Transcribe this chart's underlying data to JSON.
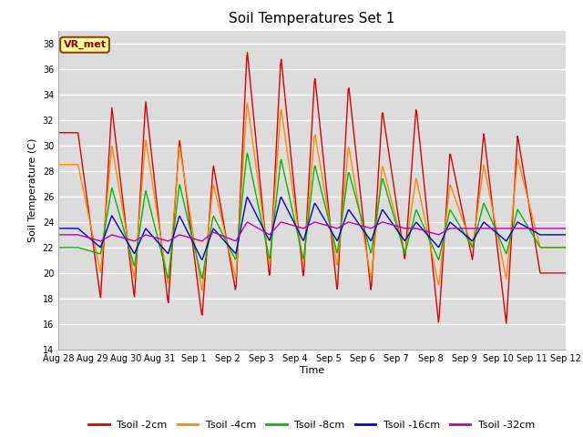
{
  "title": "Soil Temperatures Set 1",
  "xlabel": "Time",
  "ylabel": "Soil Temperature (C)",
  "ylim": [
    14,
    39
  ],
  "yticks": [
    14,
    16,
    18,
    20,
    22,
    24,
    26,
    28,
    30,
    32,
    34,
    36,
    38
  ],
  "annotation_text": "VR_met",
  "background_color": "#dcdcdc",
  "series_colors": [
    "#dd0000",
    "#ff8800",
    "#00bb00",
    "#0000cc",
    "#bb00bb"
  ],
  "series_labels": [
    "Tsoil -2cm",
    "Tsoil -4cm",
    "Tsoil -8cm",
    "Tsoil -16cm",
    "Tsoil -32cm"
  ],
  "x_tick_labels": [
    "Aug 28",
    "Aug 29",
    "Aug 30",
    "Aug 31",
    "Sep 1",
    "Sep 2",
    "Sep 3",
    "Sep 4",
    "Sep 5",
    "Sep 6",
    "Sep 7",
    "Sep 8",
    "Sep 9",
    "Sep 10",
    "Sep 11",
    "Sep 12"
  ],
  "num_days": 15,
  "pts_per_day": 48,
  "peaks_2cm": [
    31.0,
    18.0,
    33.0,
    18.0,
    33.5,
    17.5,
    30.5,
    16.5,
    28.5,
    18.5,
    37.5,
    19.5,
    37.0,
    19.5,
    35.5,
    18.5,
    34.8,
    18.5,
    32.8,
    21.0,
    33.0,
    16.0,
    29.5,
    21.0,
    31.0,
    16.0,
    30.8,
    20.0
  ],
  "peaks_4cm": [
    28.5,
    20.0,
    30.0,
    19.5,
    30.5,
    19.0,
    30.0,
    18.5,
    27.0,
    19.5,
    33.5,
    20.5,
    33.0,
    20.5,
    31.0,
    20.5,
    30.0,
    19.5,
    28.5,
    21.5,
    27.5,
    19.0,
    27.0,
    22.0,
    28.5,
    19.5,
    29.0,
    22.0
  ],
  "peaks_8cm": [
    22.0,
    21.5,
    26.7,
    20.5,
    26.5,
    19.5,
    27.0,
    19.5,
    24.5,
    21.0,
    29.5,
    21.0,
    29.0,
    21.0,
    28.5,
    21.5,
    28.0,
    21.5,
    27.5,
    21.5,
    25.0,
    21.0,
    25.0,
    22.0,
    25.5,
    21.5,
    25.0,
    22.0
  ],
  "peaks_16cm": [
    23.5,
    22.0,
    24.5,
    21.5,
    23.5,
    21.5,
    24.5,
    21.0,
    23.5,
    21.5,
    26.0,
    22.5,
    26.0,
    22.5,
    25.5,
    22.5,
    25.0,
    22.5,
    25.0,
    22.5,
    24.0,
    22.0,
    24.0,
    22.5,
    24.0,
    22.5,
    24.0,
    23.0
  ],
  "peaks_32cm": [
    23.0,
    22.5,
    23.0,
    22.5,
    23.0,
    22.5,
    23.0,
    22.5,
    23.2,
    22.5,
    24.0,
    23.0,
    24.0,
    23.5,
    24.0,
    23.5,
    24.0,
    23.5,
    24.0,
    23.5,
    23.5,
    23.0,
    23.5,
    23.5,
    23.5,
    23.5,
    23.5,
    23.5
  ]
}
